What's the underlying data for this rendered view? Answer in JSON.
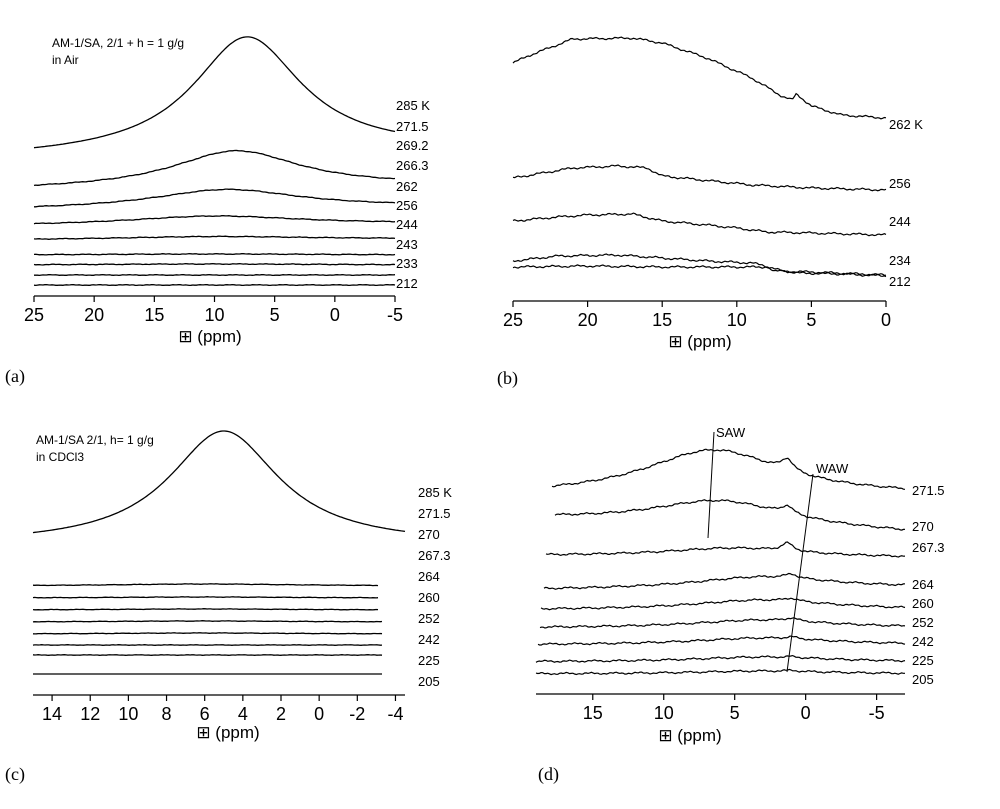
{
  "chart_data": [
    {
      "panel": "(a)",
      "type": "line",
      "annotation": [
        "AM-1/SA, 2/1 + h = 1 g/g",
        "in Air"
      ],
      "xlabel": "⊞ (ppm)",
      "xlim": [
        25,
        -5
      ],
      "x_reversed": true,
      "xticks": [
        "25",
        "20",
        "15",
        "10",
        "5",
        "0",
        "-5"
      ],
      "stack_labels": [
        "285 K",
        "271.5",
        "269.2",
        "266.3",
        "262",
        "256",
        "244",
        "243",
        "233",
        "212"
      ],
      "series": [
        {
          "label": "285 K",
          "peak_x": 7.3,
          "peak_height": 117,
          "width": 5.5,
          "base_left": 0,
          "base_right": -7
        },
        {
          "label": "266.3",
          "peak_x": 8.2,
          "peak_height": 37,
          "width": 6.5,
          "base_left": 0,
          "base_right": -4
        },
        {
          "label": "256",
          "peak_x": 9.0,
          "peak_height": 19,
          "width": 7.5,
          "base_left": 0,
          "base_right": -3
        },
        {
          "label": "244",
          "peak_x": 10.0,
          "peak_height": 9,
          "width": 9,
          "base_left": 0,
          "base_right": -2
        },
        {
          "label": "243",
          "peak_x": 10.0,
          "peak_height": 3,
          "width": 10,
          "base_left": 0,
          "base_right": -1
        },
        {
          "label": "233",
          "peak_x": 10.0,
          "peak_height": 1,
          "width": 12,
          "base_left": 0,
          "base_right": 0
        },
        {
          "label": "",
          "peak_x": 10.0,
          "peak_height": 1,
          "width": 12,
          "base_left": 0,
          "base_right": 0
        },
        {
          "label": "",
          "peak_x": 10.0,
          "peak_height": 0,
          "width": 12,
          "base_left": 0,
          "base_right": 0
        },
        {
          "label": "212",
          "peak_x": 10.0,
          "peak_height": 0,
          "width": 12,
          "base_left": 0,
          "base_right": 0
        }
      ]
    },
    {
      "panel": "(b)",
      "type": "line",
      "xlabel": "⊞ (ppm)",
      "xlim": [
        25,
        0
      ],
      "x_reversed": true,
      "xticks": [
        "25",
        "20",
        "15",
        "10",
        "5",
        "0"
      ],
      "stack_labels": [
        "262 K",
        "256",
        "244",
        "234",
        "212"
      ],
      "series": [
        {
          "label": "262 K",
          "shape": "broad plateau 22-17 ppm, decreasing to baseline near 5 ppm, small dip at 6.3 ppm"
        },
        {
          "label": "256",
          "shape": "plateau 18-16 ppm, step down near 15 and 10 ppm"
        },
        {
          "label": "244",
          "shape": "plateau 20-17 ppm, decreasing toward 8 ppm"
        },
        {
          "label": "234",
          "shape": "weak broad band, step down near 7.5 ppm"
        },
        {
          "label": "212",
          "shape": "nearly flat, small step near 7 ppm"
        }
      ]
    },
    {
      "panel": "(c)",
      "type": "line",
      "annotation": [
        "AM-1/SA 2/1, h= 1 g/g",
        "in CDCl3"
      ],
      "xlabel": "⊞ (ppm)",
      "xlim": [
        15,
        -4.5
      ],
      "x_reversed": true,
      "xticks": [
        "14",
        "12",
        "10",
        "8",
        "6",
        "4",
        "2",
        "0",
        "-2",
        "-4"
      ],
      "stack_labels": [
        "285 K",
        "271.5",
        "270",
        "267.3",
        "264",
        "260",
        "252",
        "242",
        "225",
        "205"
      ],
      "series": [
        {
          "label": "285 K",
          "peak_x": 5.0,
          "peak_height": 114,
          "width": 3.5
        },
        {
          "label": "264",
          "peak_x": 6.0,
          "peak_height": 2,
          "width": 6
        },
        {
          "label": "260",
          "peak_x": 6.0,
          "peak_height": 1,
          "width": 6
        },
        {
          "label": "252",
          "peak_x": 6.0,
          "peak_height": 1,
          "width": 6
        },
        {
          "label": "242",
          "peak_x": 6.0,
          "peak_height": 1,
          "width": 6
        },
        {
          "label": "",
          "peak_x": 6.0,
          "peak_height": 1,
          "width": 6
        },
        {
          "label": "225",
          "peak_x": 6.0,
          "peak_height": 0,
          "width": 6
        },
        {
          "label": "205",
          "peak_x": 6.0,
          "peak_height": 0,
          "width": 6
        }
      ]
    },
    {
      "panel": "(d)",
      "type": "line",
      "annotations": [
        "SAW",
        "WAW"
      ],
      "xlabel": "⊞ (ppm)",
      "xlim": [
        19,
        -7
      ],
      "x_reversed": true,
      "xticks": [
        "15",
        "10",
        "5",
        "0",
        "-5"
      ],
      "stack_labels": [
        "271.5",
        "270",
        "267.3",
        "264",
        "260",
        "252",
        "242",
        "225",
        "205"
      ],
      "series": [
        {
          "label": "271.5",
          "saw_x": 6.5,
          "saw_height": 46,
          "waw_x": 1.3,
          "waw_height": 12
        },
        {
          "label": "270",
          "saw_x": 6.0,
          "saw_height": 26,
          "waw_x": 1.3,
          "waw_height": 8
        },
        {
          "label": "267.3",
          "saw_x": 5.0,
          "saw_height": 9,
          "waw_x": 1.3,
          "waw_height": 8
        },
        {
          "label": "264",
          "saw_x": 3.0,
          "saw_height": 12,
          "waw_x": 1.0,
          "waw_height": 4
        },
        {
          "label": "260",
          "saw_x": 3.0,
          "saw_height": 10,
          "waw_x": 1.0,
          "waw_height": 3
        },
        {
          "label": "252",
          "saw_x": 3.0,
          "saw_height": 8,
          "waw_x": 1.0,
          "waw_height": 3
        },
        {
          "label": "242",
          "saw_x": 3.0,
          "saw_height": 7,
          "waw_x": 1.0,
          "waw_height": 2
        },
        {
          "label": "225",
          "saw_x": 3.0,
          "saw_height": 5,
          "waw_x": 1.0,
          "waw_height": 1
        },
        {
          "label": "205",
          "saw_x": 3.0,
          "saw_height": 3,
          "waw_x": 1.0,
          "waw_height": 1
        }
      ]
    }
  ]
}
